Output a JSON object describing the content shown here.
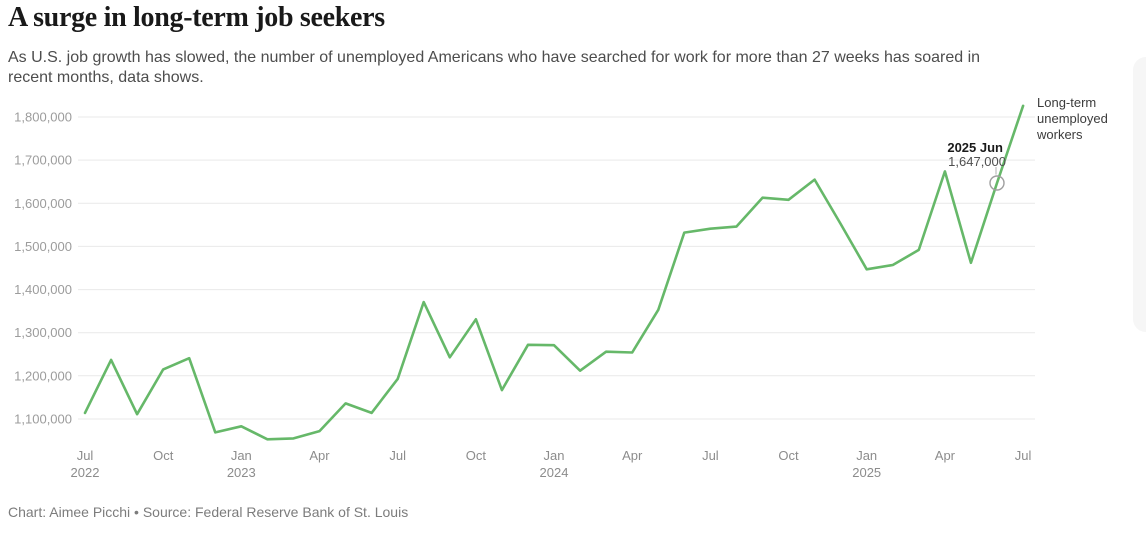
{
  "header": {
    "title": "A surge in long-term job seekers",
    "subtitle_line1": "As U.S. job growth has slowed, the number of unemployed Americans who have searched for work for more than 27 weeks has soared in",
    "subtitle_line2": "recent months, data shows."
  },
  "chart_data": {
    "type": "line",
    "title": "A surge in long-term job seekers",
    "series_label": "Long-term unemployed workers",
    "line_color": "#66b869",
    "grid": true,
    "legend_position": "right-of-line-end",
    "ylim": [
      1050000,
      1830000
    ],
    "x": [
      "2022-07",
      "2022-08",
      "2022-09",
      "2022-10",
      "2022-11",
      "2022-12",
      "2023-01",
      "2023-02",
      "2023-03",
      "2023-04",
      "2023-05",
      "2023-06",
      "2023-07",
      "2023-08",
      "2023-09",
      "2023-10",
      "2023-11",
      "2023-12",
      "2024-01",
      "2024-02",
      "2024-03",
      "2024-04",
      "2024-05",
      "2024-06",
      "2024-07",
      "2024-08",
      "2024-09",
      "2024-10",
      "2024-11",
      "2024-12",
      "2025-01",
      "2025-02",
      "2025-03",
      "2025-04",
      "2025-05",
      "2025-06",
      "2025-07"
    ],
    "values": [
      1114000,
      1237000,
      1111000,
      1215000,
      1241000,
      1069000,
      1083000,
      1053000,
      1055000,
      1072000,
      1136000,
      1114000,
      1193000,
      1371000,
      1243000,
      1331000,
      1167000,
      1272000,
      1271000,
      1212000,
      1256000,
      1254000,
      1353000,
      1532000,
      1541000,
      1546000,
      1613000,
      1608000,
      1655000,
      1552000,
      1447000,
      1457000,
      1492000,
      1674000,
      1462000,
      1647000,
      1826000
    ],
    "y_ticks": [
      1100000,
      1200000,
      1300000,
      1400000,
      1500000,
      1600000,
      1700000,
      1800000
    ],
    "y_tick_labels": [
      "1,100,000",
      "1,200,000",
      "1,300,000",
      "1,400,000",
      "1,500,000",
      "1,600,000",
      "1,700,000",
      "1,800,000"
    ],
    "x_ticks": [
      {
        "index": 0,
        "month": "Jul",
        "year": "2022"
      },
      {
        "index": 3,
        "month": "Oct",
        "year": ""
      },
      {
        "index": 6,
        "month": "Jan",
        "year": "2023"
      },
      {
        "index": 9,
        "month": "Apr",
        "year": ""
      },
      {
        "index": 12,
        "month": "Jul",
        "year": ""
      },
      {
        "index": 15,
        "month": "Oct",
        "year": ""
      },
      {
        "index": 18,
        "month": "Jan",
        "year": "2024"
      },
      {
        "index": 21,
        "month": "Apr",
        "year": ""
      },
      {
        "index": 24,
        "month": "Jul",
        "year": ""
      },
      {
        "index": 27,
        "month": "Oct",
        "year": ""
      },
      {
        "index": 30,
        "month": "Jan",
        "year": "2025"
      },
      {
        "index": 33,
        "month": "Apr",
        "year": ""
      },
      {
        "index": 36,
        "month": "Jul",
        "year": ""
      }
    ],
    "annotation": {
      "index": 35,
      "label": "2025 Jun",
      "value_label": "1,647,000",
      "value": 1647000
    }
  },
  "footer": {
    "credit": "Chart: Aimee Picchi • Source: Federal Reserve Bank of St. Louis"
  }
}
